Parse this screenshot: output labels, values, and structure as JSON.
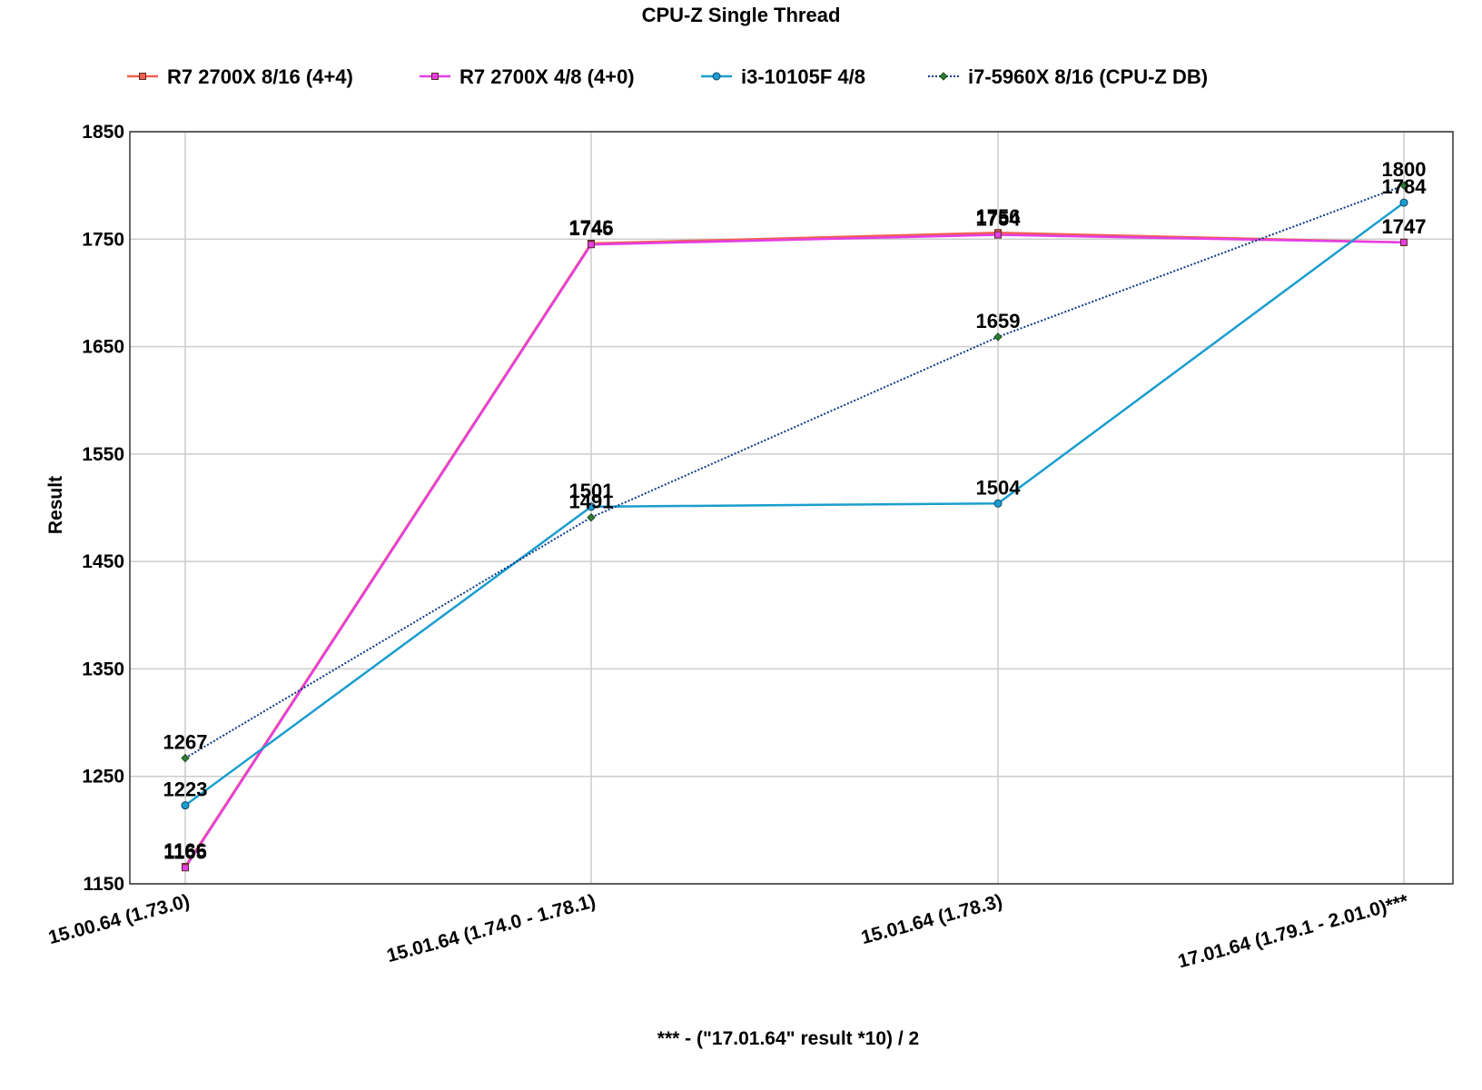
{
  "chart_data": {
    "type": "line",
    "title": "CPU-Z Single Thread",
    "ylabel": "Result",
    "xlabel": "*** - (\"17.01.64\" result *10) / 2",
    "ylim": [
      1150,
      1850
    ],
    "yticks": [
      1150,
      1250,
      1350,
      1450,
      1550,
      1650,
      1750,
      1850
    ],
    "categories": [
      "15.00.64 (1.73.0)",
      "15.01.64 (1.74.0 - 1.78.1)",
      "15.01.64 (1.78.3)",
      "17.01.64 (1.79.1 - 2.01.0)***"
    ],
    "grid": true,
    "legend_position": "top",
    "series": [
      {
        "name": "R7 2700X 8/16 (4+4)",
        "color": "#f0604e",
        "marker": "square",
        "dash": "solid",
        "values": [
          1166,
          1746,
          1756,
          1747
        ]
      },
      {
        "name": "R7 2700X 4/8 (4+0)",
        "color": "#e53ee5",
        "marker": "square",
        "dash": "solid",
        "values": [
          1165,
          1745,
          1754,
          1747
        ]
      },
      {
        "name": "i3-10105F 4/8",
        "color": "#1a9ecf",
        "marker": "circle",
        "dash": "solid",
        "values": [
          1223,
          1501,
          1504,
          1784
        ]
      },
      {
        "name": "i7-5960X 8/16 (CPU-Z DB)",
        "color": "#0d3a8a",
        "marker": "diamond",
        "dash": "dotted",
        "values": [
          1267,
          1491,
          1659,
          1800
        ]
      }
    ]
  }
}
